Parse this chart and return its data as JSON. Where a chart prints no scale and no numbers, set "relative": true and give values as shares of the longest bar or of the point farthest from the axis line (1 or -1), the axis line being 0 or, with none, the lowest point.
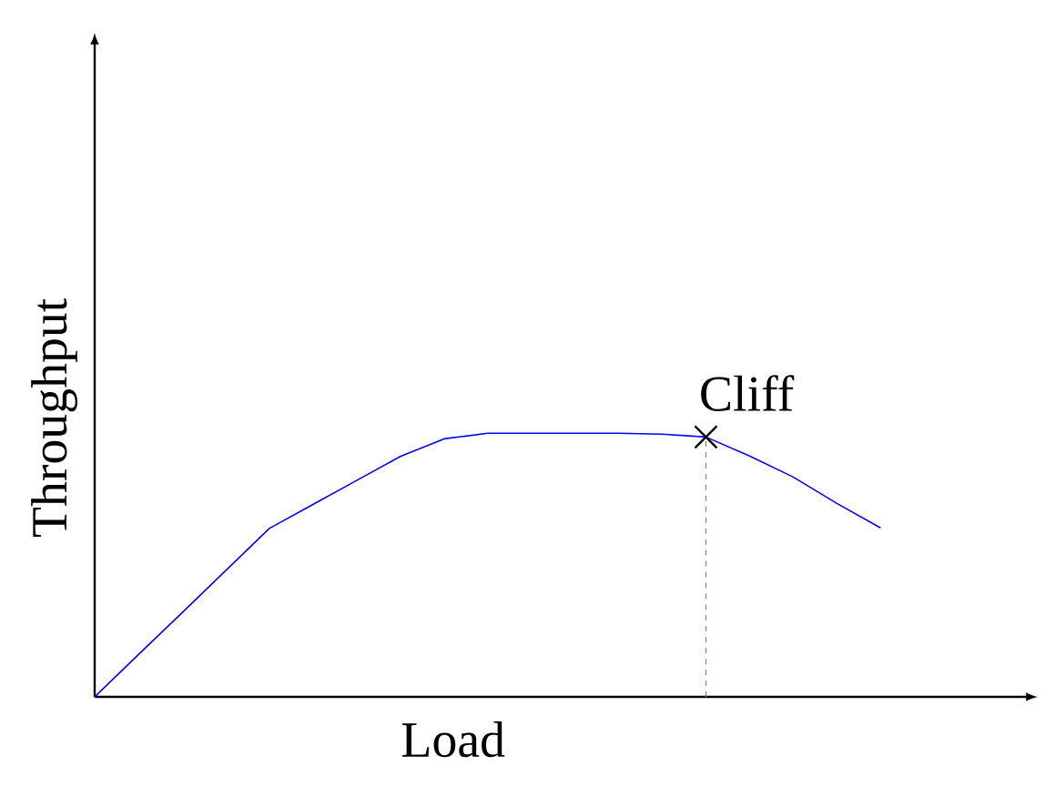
{
  "chart_data": {
    "type": "line",
    "xlabel": "Load",
    "ylabel": "Throughput",
    "relative": true,
    "categories": [
      null,
      null,
      null,
      null,
      null,
      null,
      null,
      null,
      null,
      null,
      null,
      null,
      null,
      null,
      null,
      null,
      null,
      null,
      null
    ],
    "series": [
      {
        "color": "#0000ff",
        "values": [
          0,
          0.16,
          0.319,
          0.479,
          0.639,
          0.73,
          0.821,
          0.912,
          0.979,
          1,
          1,
          1,
          1,
          0.997,
          0.986,
          0.914,
          0.834,
          0.734,
          0.641
        ]
      }
    ],
    "annotations": [
      "Cliff"
    ]
  }
}
